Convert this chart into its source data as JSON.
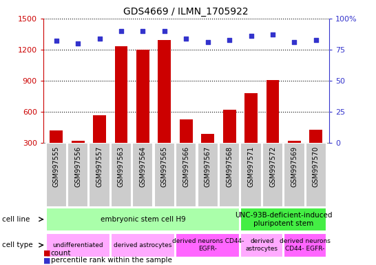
{
  "title": "GDS4669 / ILMN_1705922",
  "samples": [
    "GSM997555",
    "GSM997556",
    "GSM997557",
    "GSM997563",
    "GSM997564",
    "GSM997565",
    "GSM997566",
    "GSM997567",
    "GSM997568",
    "GSM997571",
    "GSM997572",
    "GSM997569",
    "GSM997570"
  ],
  "counts": [
    420,
    320,
    570,
    1230,
    1200,
    1290,
    530,
    390,
    620,
    780,
    910,
    320,
    430
  ],
  "percentiles": [
    82,
    80,
    84,
    90,
    90,
    90,
    84,
    81,
    83,
    86,
    87,
    81,
    83
  ],
  "ylim_left": [
    300,
    1500
  ],
  "ylim_right": [
    0,
    100
  ],
  "yticks_left": [
    300,
    600,
    900,
    1200,
    1500
  ],
  "yticks_right": [
    0,
    25,
    50,
    75,
    100
  ],
  "bar_color": "#cc0000",
  "dot_color": "#3333cc",
  "grid_color": "#555555",
  "cell_line_groups": [
    {
      "label": "embryonic stem cell H9",
      "start": 0,
      "end": 9,
      "color": "#aaffaa"
    },
    {
      "label": "UNC-93B-deficient-induced\npluripotent stem",
      "start": 9,
      "end": 13,
      "color": "#44ee44"
    }
  ],
  "cell_type_groups": [
    {
      "label": "undifferentiated",
      "start": 0,
      "end": 3,
      "color": "#ffaaff"
    },
    {
      "label": "derived astrocytes",
      "start": 3,
      "end": 6,
      "color": "#ffaaff"
    },
    {
      "label": "derived neurons CD44-\nEGFR-",
      "start": 6,
      "end": 9,
      "color": "#ff66ff"
    },
    {
      "label": "derived\nastrocytes",
      "start": 9,
      "end": 11,
      "color": "#ffaaff"
    },
    {
      "label": "derived neurons\nCD44- EGFR-",
      "start": 11,
      "end": 13,
      "color": "#ff66ff"
    }
  ],
  "legend_count_color": "#cc0000",
  "legend_pct_color": "#3333cc",
  "sample_bg_color": "#cccccc",
  "sample_bg_edge": "#ffffff"
}
